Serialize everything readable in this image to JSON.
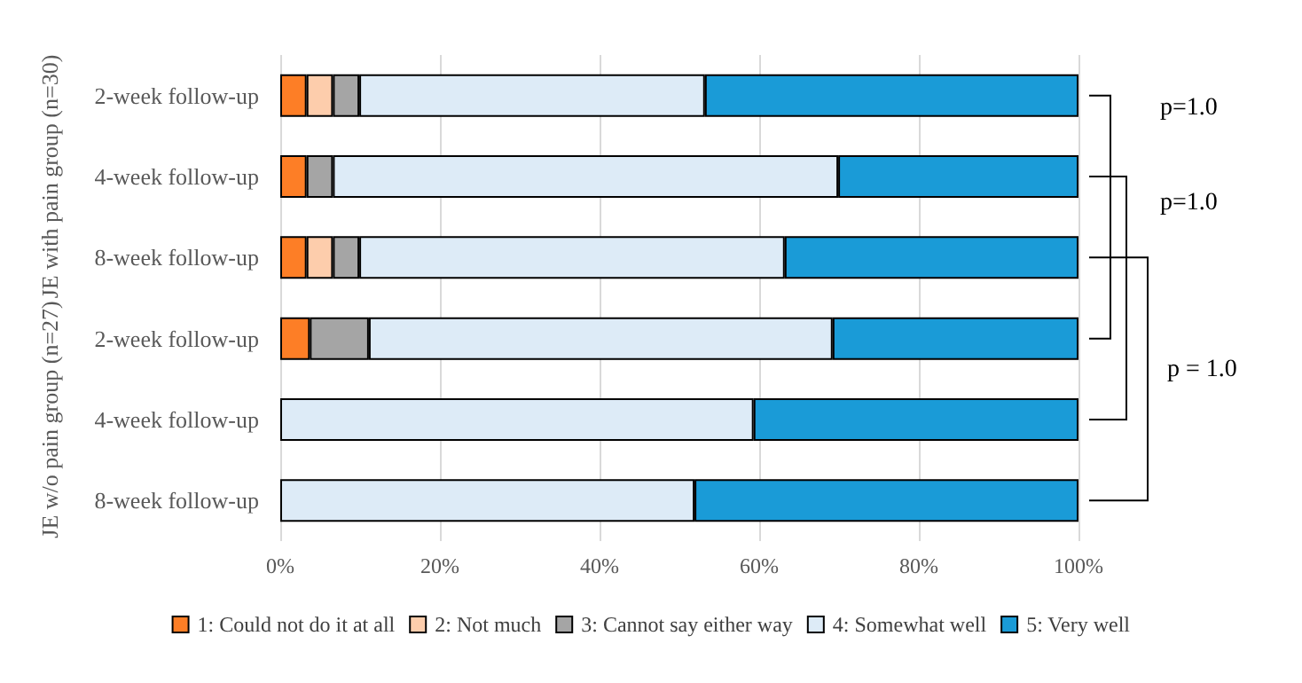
{
  "chart_data": {
    "type": "bar",
    "orientation": "horizontal",
    "stacked": true,
    "categories": [
      "2-week follow-up",
      "4-week follow-up",
      "8-week follow-up",
      "2-week follow-up",
      "4-week follow-up",
      "8-week follow-up"
    ],
    "series": [
      {
        "name": "1: Could not do it at all",
        "color": "#fd7e26",
        "values": [
          3.3,
          3.3,
          3.3,
          3.7,
          0,
          0
        ]
      },
      {
        "name": "2: Not much",
        "color": "#fdcdac",
        "values": [
          3.3,
          0,
          3.3,
          0,
          0,
          0
        ]
      },
      {
        "name": "3: Cannot say either way",
        "color": "#a5a5a5",
        "values": [
          3.3,
          3.3,
          3.3,
          7.4,
          0,
          0
        ]
      },
      {
        "name": "4: Somewhat well",
        "color": "#ddebf7",
        "values": [
          43.3,
          63.3,
          53.3,
          58.1,
          59.3,
          51.9
        ]
      },
      {
        "name": "5: Very well",
        "color": "#1a9bd7",
        "values": [
          46.8,
          30.1,
          36.8,
          30.8,
          40.7,
          48.1
        ]
      }
    ],
    "xlim": [
      0,
      100
    ],
    "xticks": [
      {
        "value": 0,
        "label": "0%"
      },
      {
        "value": 20,
        "label": "20%"
      },
      {
        "value": 40,
        "label": "40%"
      },
      {
        "value": 60,
        "label": "60%"
      },
      {
        "value": 80,
        "label": "80%"
      },
      {
        "value": 100,
        "label": "100%"
      }
    ],
    "grid": "x",
    "legend": "bottom",
    "annotations": [
      "JE with pain group (n=30)",
      "JE w/o pain group (n=27)",
      "p=1.0",
      "p=1.0",
      "p = 1.0"
    ]
  }
}
